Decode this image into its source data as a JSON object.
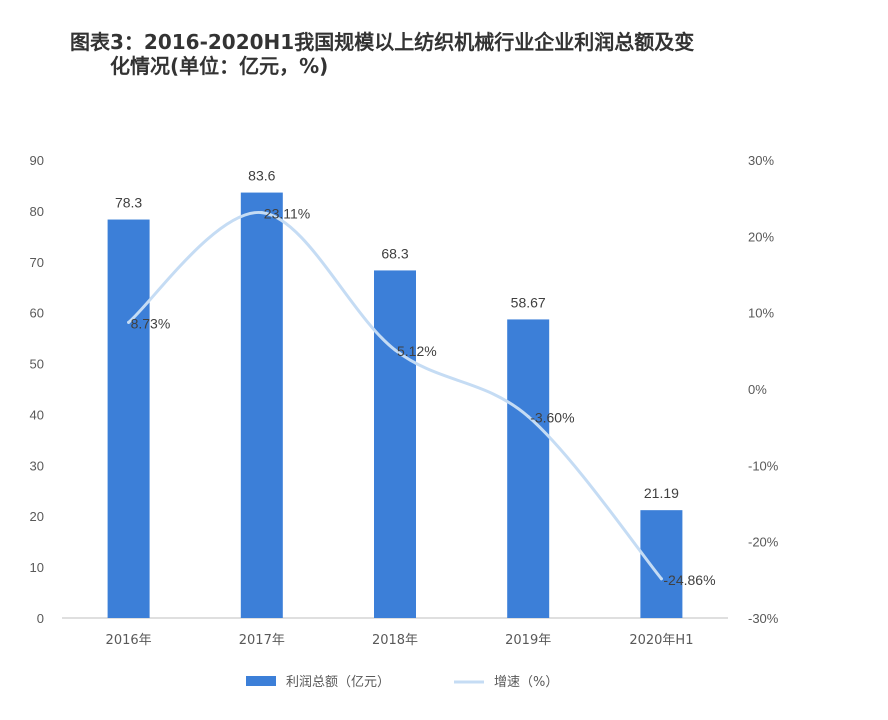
{
  "title_line1": "图表3：2016-2020H1我国规模以上纺织机械行业企业利润总额及变",
  "title_line2": "化情况(单位：亿元，%)",
  "colors": {
    "bar": "#3C7FD8",
    "line": "#C5DCF4",
    "axis": "#BFBFBF",
    "text": "#595959"
  },
  "chart_data": {
    "type": "bar",
    "title": "图表3：2016-2020H1我国规模以上纺织机械行业企业利润总额及变化情况(单位：亿元，%)",
    "categories": [
      "2016年",
      "2017年",
      "2018年",
      "2019年",
      "2020年H1"
    ],
    "series": [
      {
        "name": "利润总额（亿元）",
        "type": "bar",
        "axis": "left",
        "values": [
          78.3,
          83.6,
          68.3,
          58.67,
          21.19
        ],
        "labels": [
          "78.3",
          "83.6",
          "68.3",
          "58.67",
          "21.19"
        ]
      },
      {
        "name": "增速（%）",
        "type": "line",
        "axis": "right",
        "smooth": true,
        "values": [
          8.73,
          23.11,
          5.12,
          -3.6,
          -24.86
        ],
        "labels": [
          "8.73%",
          "23.11%",
          "5.12%",
          "-3.60%",
          "-24.86%"
        ]
      }
    ],
    "y_left": {
      "min": 0,
      "max": 90,
      "ticks": [
        "0",
        "10",
        "20",
        "30",
        "40",
        "50",
        "60",
        "70",
        "80",
        "90"
      ]
    },
    "y_right": {
      "min": -30,
      "max": 30,
      "ticks": [
        "-30%",
        "-20%",
        "-10%",
        "0%",
        "10%",
        "20%",
        "30%"
      ]
    },
    "legend_position": "bottom"
  }
}
